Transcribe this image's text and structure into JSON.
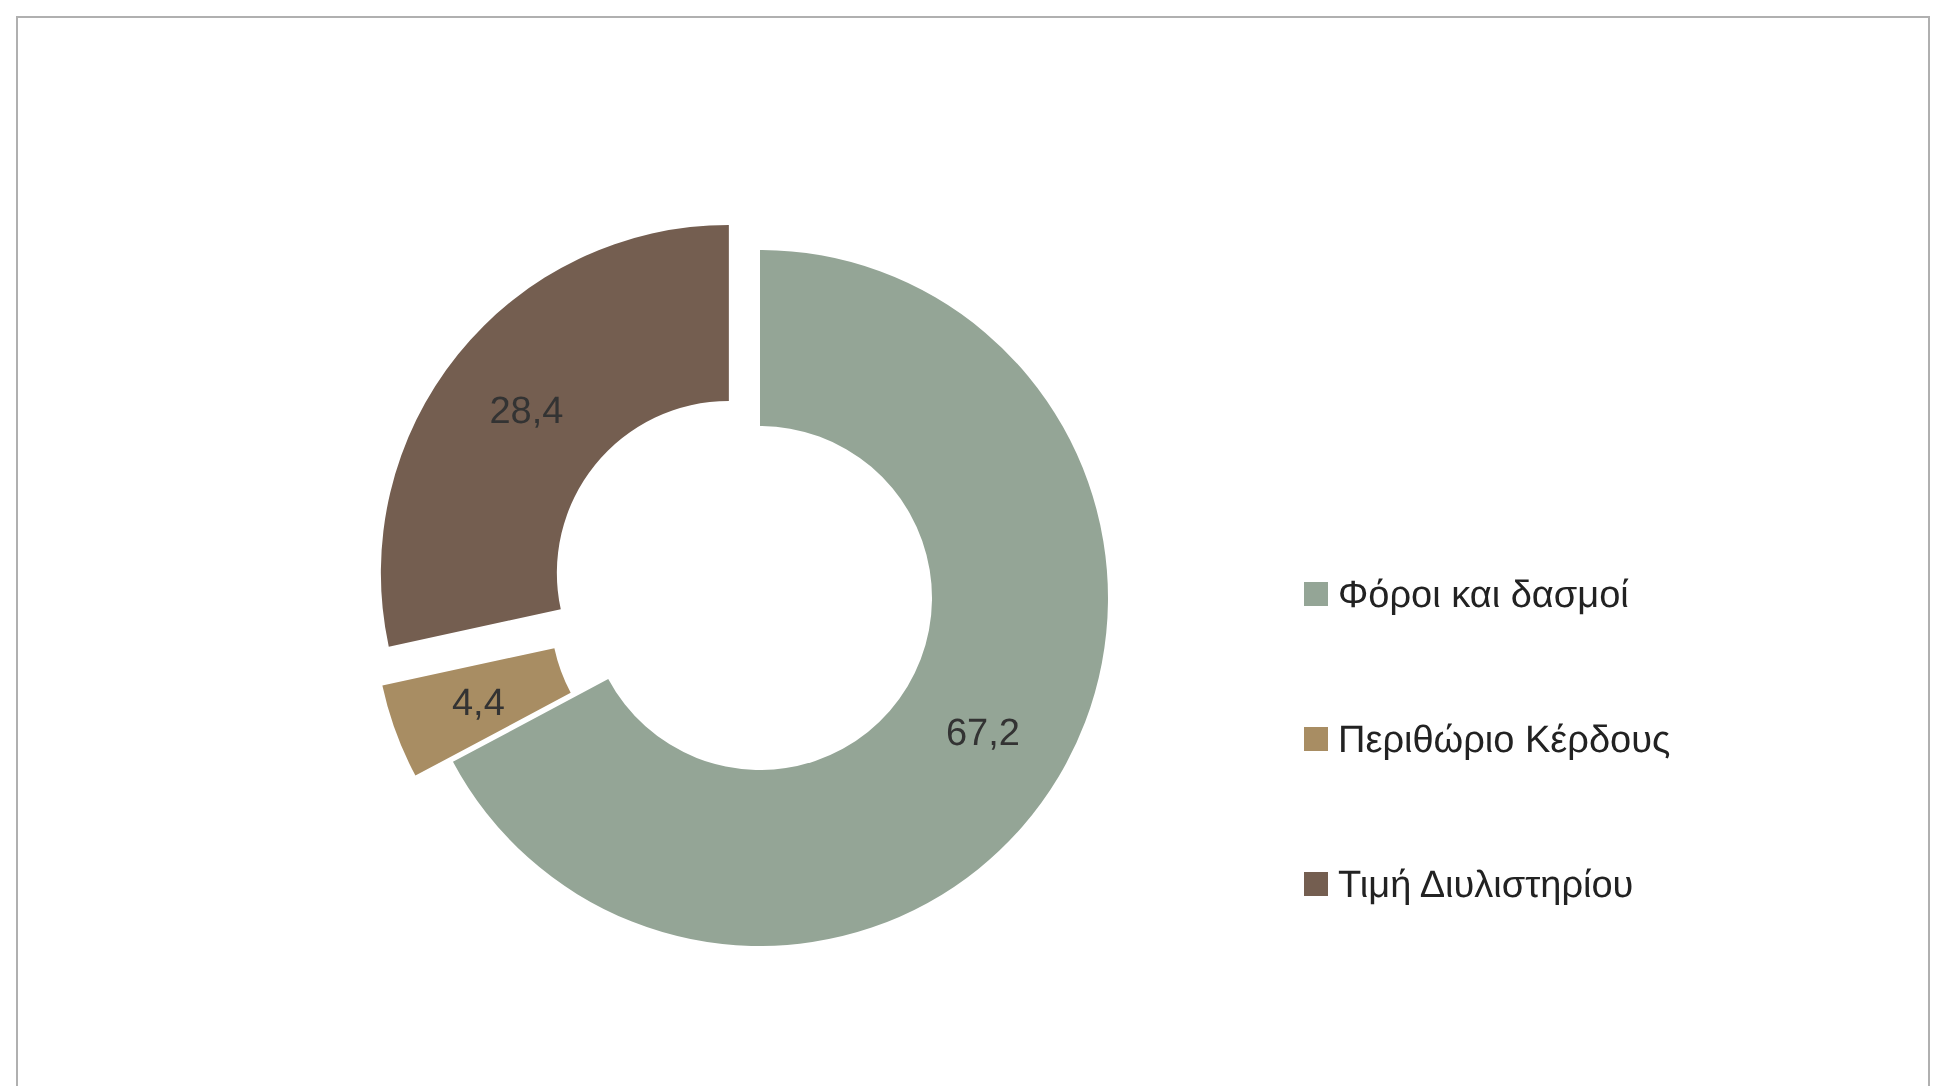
{
  "chart_data": {
    "type": "donut",
    "categories": [
      "Φόροι και δασμοί",
      "Περιθώριο Κέρδους",
      "Τιμή Διυλιστηρίου"
    ],
    "values": [
      67.2,
      4.4,
      28.4
    ],
    "value_labels": [
      "67,2",
      "4,4",
      "28,4"
    ],
    "colors": [
      "#94a596",
      "#a88d63",
      "#745e50"
    ],
    "legend": "right"
  }
}
